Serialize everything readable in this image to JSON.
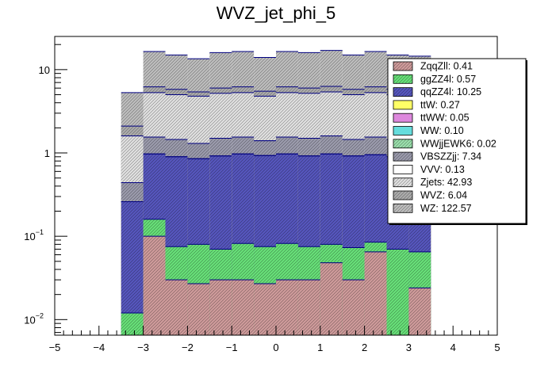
{
  "chart_data": {
    "type": "bar",
    "title": "WVZ_jet_phi_5",
    "xlabel": "",
    "ylabel": "",
    "xlim": [
      -5,
      5
    ],
    "ylim": [
      0.0065,
      25
    ],
    "log_y": true,
    "bins": [
      -3.5,
      -3.0,
      -2.5,
      -2.0,
      -1.5,
      -1.0,
      -0.5,
      0.0,
      0.5,
      1.0,
      1.5,
      2.0,
      2.5,
      3.0,
      3.5
    ],
    "x_tick_labels": [
      "−5",
      "−4",
      "−3",
      "−2",
      "−1",
      "0",
      "1",
      "2",
      "3",
      "4",
      "5"
    ],
    "y_tick_labels": [
      {
        "base": "10",
        "exp": "−2"
      },
      {
        "base": "10",
        "exp": "−1"
      },
      {
        "base": "1",
        "exp": ""
      },
      {
        "base": "10",
        "exp": ""
      }
    ],
    "stack_totals": [
      {
        "name": "ZqqZll",
        "values": [
          0.0,
          0.1,
          0.03,
          0.027,
          0.03,
          0.03,
          0.027,
          0.03,
          0.03,
          0.048,
          0.03,
          0.065,
          0.0,
          0.024
        ]
      },
      {
        "name": "ggZZ4l",
        "values": [
          0.012,
          0.16,
          0.075,
          0.08,
          0.07,
          0.082,
          0.075,
          0.082,
          0.075,
          0.08,
          0.073,
          0.085,
          0.07,
          0.065
        ]
      },
      {
        "name": "qqZZ4l",
        "values": [
          0.26,
          0.97,
          0.9,
          0.85,
          0.92,
          0.97,
          0.93,
          0.97,
          0.92,
          0.97,
          0.92,
          0.95,
          0.9,
          0.85
        ]
      },
      {
        "name": "ttW",
        "values": [
          0.26,
          0.97,
          0.9,
          0.85,
          0.92,
          0.97,
          0.93,
          0.97,
          0.92,
          0.97,
          0.92,
          0.95,
          0.9,
          0.85
        ]
      },
      {
        "name": "ttWW",
        "values": [
          0.26,
          0.97,
          0.9,
          0.85,
          0.92,
          0.97,
          0.93,
          0.97,
          0.92,
          0.97,
          0.92,
          0.95,
          0.9,
          0.85
        ]
      },
      {
        "name": "WW",
        "values": [
          0.26,
          0.97,
          0.9,
          0.85,
          0.92,
          0.97,
          0.93,
          0.97,
          0.92,
          0.97,
          0.92,
          0.95,
          0.9,
          0.85
        ]
      },
      {
        "name": "WWjjEWK6",
        "values": [
          0.26,
          0.97,
          0.9,
          0.85,
          0.92,
          0.97,
          0.93,
          0.97,
          0.92,
          0.97,
          0.92,
          0.95,
          0.9,
          0.85
        ]
      },
      {
        "name": "VBSZZjj",
        "values": [
          0.44,
          1.55,
          1.45,
          1.3,
          1.5,
          1.55,
          1.4,
          1.55,
          1.5,
          1.6,
          1.45,
          1.55,
          1.45,
          1.4
        ]
      },
      {
        "name": "VVV",
        "values": [
          0.44,
          1.55,
          1.45,
          1.3,
          1.5,
          1.55,
          1.4,
          1.55,
          1.5,
          1.6,
          1.45,
          1.55,
          1.45,
          1.4
        ]
      },
      {
        "name": "Zjets",
        "values": [
          1.6,
          5.3,
          5.0,
          4.8,
          5.2,
          5.3,
          4.8,
          5.3,
          5.2,
          5.4,
          5.0,
          5.3,
          5.0,
          4.9
        ]
      },
      {
        "name": "WVZ",
        "values": [
          2.1,
          6.2,
          5.8,
          5.4,
          6.0,
          6.2,
          5.5,
          6.2,
          6.0,
          6.3,
          5.8,
          6.2,
          5.8,
          5.6
        ]
      },
      {
        "name": "WZ",
        "values": [
          5.3,
          16.5,
          15.0,
          13.5,
          16.0,
          16.5,
          14.0,
          16.5,
          16.0,
          17.0,
          15.0,
          16.5,
          15.0,
          14.5
        ]
      }
    ],
    "legend": [
      {
        "label": "ZqqZll: 0.41",
        "color": "#cc9999",
        "hatch": true
      },
      {
        "label": "ggZZ4l: 0.57",
        "color": "#66dd77",
        "hatch": true
      },
      {
        "label": "qqZZ4l: 10.25",
        "color": "#5555bb",
        "hatch": true
      },
      {
        "label": "ttW: 0.27",
        "color": "#ffff66",
        "hatch": false
      },
      {
        "label": "ttWW: 0.05",
        "color": "#dd88dd",
        "hatch": false
      },
      {
        "label": "WW: 0.10",
        "color": "#66dddd",
        "hatch": false
      },
      {
        "label": "WWjjEWK6: 0.02",
        "color": "#99ddaa",
        "hatch": true
      },
      {
        "label": "VBSZZjj: 7.34",
        "color": "#9999aa",
        "hatch": true
      },
      {
        "label": "VVV: 0.13",
        "color": "#ffffff",
        "hatch": false
      },
      {
        "label": "Zjets: 42.93",
        "color": "#dddddd",
        "hatch": true
      },
      {
        "label": "WVZ: 6.04",
        "color": "#aaaaaa",
        "hatch": true
      },
      {
        "label": "WZ: 122.57",
        "color": "#bbbbbb",
        "hatch": true
      }
    ],
    "legend_position": "top-right",
    "grid": false
  }
}
